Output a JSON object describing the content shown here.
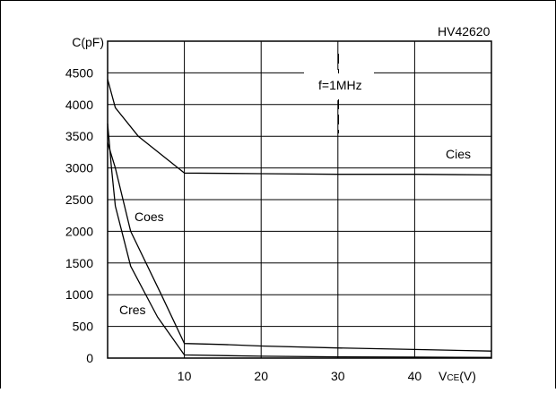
{
  "chart_data": {
    "type": "line",
    "code": "HV42620",
    "annotation": "f=1MHz",
    "ylabel": "C(pF)",
    "xlabel": {
      "main": "V",
      "sub": "CE",
      "unit": "(V)"
    },
    "xlim": [
      0,
      50
    ],
    "ylim": [
      0,
      5000
    ],
    "xticks": [
      "10",
      "20",
      "30",
      "40"
    ],
    "yticks": [
      "0",
      "500",
      "1000",
      "1500",
      "2000",
      "2500",
      "3000",
      "3500",
      "4000",
      "4500"
    ],
    "grid": true,
    "series": [
      {
        "name": "Cies",
        "x": [
          0,
          1,
          4,
          10,
          20,
          30,
          40,
          50
        ],
        "y": [
          4400,
          3950,
          3500,
          2920,
          2910,
          2900,
          2900,
          2890
        ]
      },
      {
        "name": "Coes",
        "x": [
          0,
          1,
          3,
          7,
          10,
          15,
          20,
          30,
          40,
          50
        ],
        "y": [
          3400,
          3000,
          2000,
          1000,
          230,
          215,
          190,
          160,
          135,
          110
        ]
      },
      {
        "name": "Cres",
        "x": [
          0,
          0.5,
          1,
          3,
          6.5,
          10,
          20,
          30,
          40,
          50
        ],
        "y": [
          3700,
          3000,
          2400,
          1450,
          650,
          50,
          30,
          20,
          15,
          10
        ]
      }
    ]
  }
}
